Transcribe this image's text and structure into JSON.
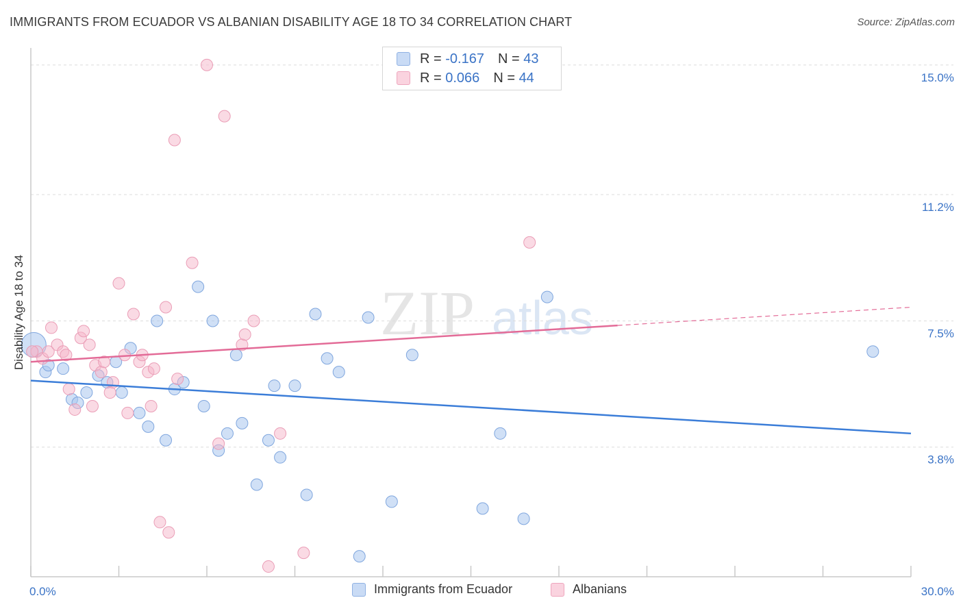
{
  "header": {
    "title": "IMMIGRANTS FROM ECUADOR VS ALBANIAN DISABILITY AGE 18 TO 34 CORRELATION CHART",
    "source": "Source: ZipAtlas.com"
  },
  "watermark": {
    "zip": "ZIP",
    "atlas": "atlas"
  },
  "legend": {
    "rows": [
      {
        "r_label": "R =",
        "r_value": "-0.167",
        "n_label": "N =",
        "n_value": "43",
        "color": "#a9c6ef"
      },
      {
        "r_label": "R =",
        "r_value": "0.066",
        "n_label": "N =",
        "n_value": "44",
        "color": "#f5b6c9"
      }
    ]
  },
  "bottom_legend": {
    "items": [
      {
        "label": "Immigrants from Ecuador",
        "color": "#a9c6ef"
      },
      {
        "label": "Albanians",
        "color": "#f5b6c9"
      }
    ]
  },
  "chart_data": {
    "type": "scatter",
    "title": "IMMIGRANTS FROM ECUADOR VS ALBANIAN DISABILITY AGE 18 TO 34 CORRELATION CHART",
    "xlabel": "",
    "ylabel": "Disability Age 18 to 34",
    "xlim": [
      0,
      30
    ],
    "ylim": [
      0,
      15.5
    ],
    "x_tick_labels": [
      "0.0%",
      "30.0%"
    ],
    "y_ticks": [
      3.8,
      7.5,
      11.2,
      15.0
    ],
    "y_tick_labels": [
      "3.8%",
      "7.5%",
      "11.2%",
      "15.0%"
    ],
    "grid": true,
    "legend_position": "top-center",
    "colors": {
      "ecuador_fill": "#a9c6ef",
      "ecuador_line": "#3b7dd8",
      "albanian_fill": "#f5b6c9",
      "albanian_line": "#e36b97",
      "tick_label": "#3a73c6"
    },
    "series": [
      {
        "name": "Immigrants from Ecuador",
        "points": [
          [
            0.1,
            6.8
          ],
          [
            0.5,
            6.0
          ],
          [
            0.6,
            6.2
          ],
          [
            1.1,
            6.1
          ],
          [
            1.4,
            5.2
          ],
          [
            1.6,
            5.1
          ],
          [
            1.9,
            5.4
          ],
          [
            2.3,
            5.9
          ],
          [
            2.6,
            5.7
          ],
          [
            2.9,
            6.3
          ],
          [
            3.1,
            5.4
          ],
          [
            3.4,
            6.7
          ],
          [
            3.7,
            4.8
          ],
          [
            4.0,
            4.4
          ],
          [
            4.3,
            7.5
          ],
          [
            4.6,
            4.0
          ],
          [
            4.9,
            5.5
          ],
          [
            5.2,
            5.7
          ],
          [
            5.7,
            8.5
          ],
          [
            5.9,
            5.0
          ],
          [
            6.2,
            7.5
          ],
          [
            6.4,
            3.7
          ],
          [
            6.7,
            4.2
          ],
          [
            7.0,
            6.5
          ],
          [
            7.2,
            4.5
          ],
          [
            7.7,
            2.7
          ],
          [
            8.1,
            4.0
          ],
          [
            8.3,
            5.6
          ],
          [
            8.5,
            3.5
          ],
          [
            9.0,
            5.6
          ],
          [
            9.4,
            2.4
          ],
          [
            9.7,
            7.7
          ],
          [
            10.1,
            6.4
          ],
          [
            10.5,
            6.0
          ],
          [
            11.2,
            0.6
          ],
          [
            11.5,
            7.6
          ],
          [
            12.3,
            2.2
          ],
          [
            13.0,
            6.5
          ],
          [
            15.4,
            2.0
          ],
          [
            16.0,
            4.2
          ],
          [
            16.8,
            1.7
          ],
          [
            17.6,
            8.2
          ],
          [
            28.7,
            6.6
          ]
        ],
        "trend": {
          "x": [
            0,
            30
          ],
          "y": [
            5.75,
            4.2
          ]
        }
      },
      {
        "name": "Albanians",
        "points": [
          [
            0.2,
            6.6
          ],
          [
            0.4,
            6.4
          ],
          [
            0.6,
            6.6
          ],
          [
            0.7,
            7.3
          ],
          [
            0.9,
            6.8
          ],
          [
            1.1,
            6.6
          ],
          [
            1.2,
            6.5
          ],
          [
            1.3,
            5.5
          ],
          [
            1.5,
            4.9
          ],
          [
            1.7,
            7.0
          ],
          [
            1.8,
            7.2
          ],
          [
            2.0,
            6.8
          ],
          [
            2.1,
            5.0
          ],
          [
            2.2,
            6.2
          ],
          [
            2.4,
            6.0
          ],
          [
            2.5,
            6.3
          ],
          [
            2.7,
            5.4
          ],
          [
            2.8,
            5.7
          ],
          [
            3.0,
            8.6
          ],
          [
            3.2,
            6.5
          ],
          [
            3.3,
            4.8
          ],
          [
            3.5,
            7.7
          ],
          [
            3.7,
            6.3
          ],
          [
            3.8,
            6.5
          ],
          [
            4.0,
            6.0
          ],
          [
            4.1,
            5.0
          ],
          [
            4.2,
            6.1
          ],
          [
            4.4,
            1.6
          ],
          [
            4.6,
            7.9
          ],
          [
            4.7,
            1.3
          ],
          [
            4.9,
            12.8
          ],
          [
            5.0,
            5.8
          ],
          [
            5.5,
            9.2
          ],
          [
            6.0,
            15.0
          ],
          [
            6.4,
            3.9
          ],
          [
            6.6,
            13.5
          ],
          [
            7.2,
            6.8
          ],
          [
            7.3,
            7.1
          ],
          [
            7.6,
            7.5
          ],
          [
            8.1,
            0.3
          ],
          [
            8.5,
            4.2
          ],
          [
            9.3,
            0.7
          ],
          [
            17.0,
            9.8
          ],
          [
            0.05,
            6.6
          ]
        ],
        "trend": {
          "x": [
            0,
            30
          ],
          "y": [
            6.3,
            7.9
          ],
          "solid_until_x": 20
        }
      }
    ]
  }
}
